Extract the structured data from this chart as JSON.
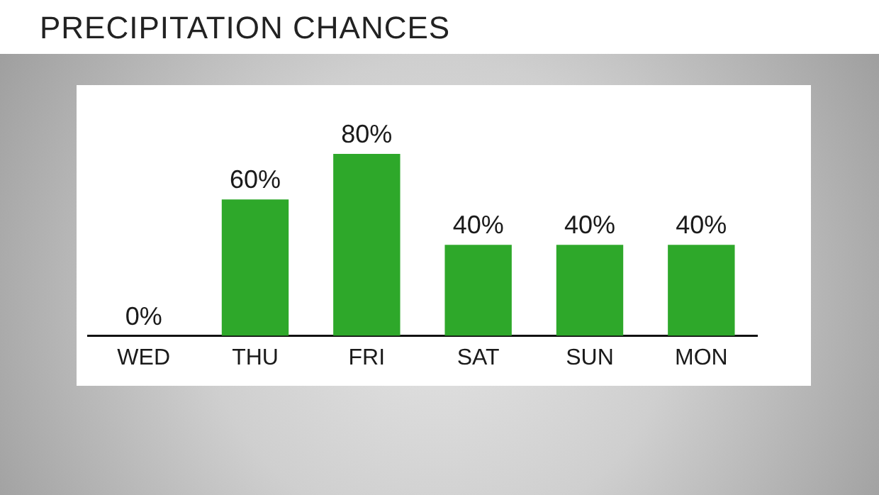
{
  "chart_data": {
    "type": "bar",
    "title": "PRECIPITATION CHANCES",
    "categories": [
      "WED",
      "THU",
      "FRI",
      "SAT",
      "SUN",
      "MON"
    ],
    "values": [
      0,
      60,
      80,
      40,
      40,
      40
    ],
    "value_labels": [
      "0%",
      "60%",
      "80%",
      "40%",
      "40%",
      "40%"
    ],
    "color": "#2ea82a",
    "grid": false,
    "legend": false
  }
}
